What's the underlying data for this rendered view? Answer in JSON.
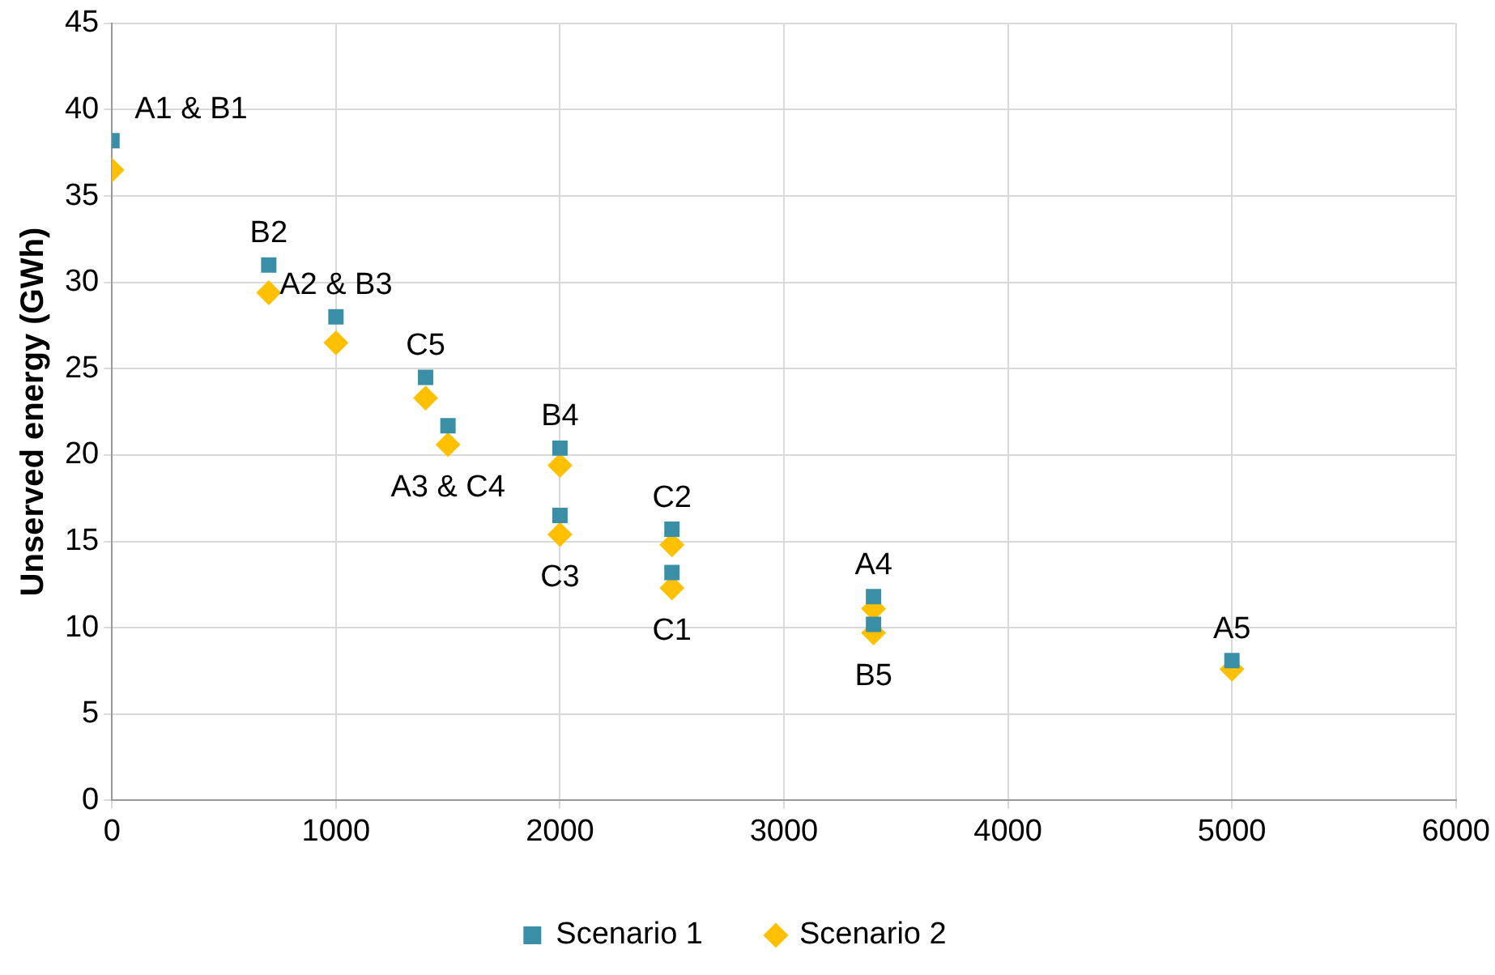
{
  "chart_data": {
    "type": "scatter",
    "ylabel": "Unserved energy (GWh)",
    "xlim": [
      0,
      6000
    ],
    "xticks": [
      0,
      1000,
      2000,
      3000,
      4000,
      5000,
      6000
    ],
    "ylim": [
      0,
      45
    ],
    "yticks": [
      0,
      5,
      10,
      15,
      20,
      25,
      30,
      35,
      40,
      45
    ],
    "grid": true,
    "legend": "bottom",
    "series": [
      {
        "name": "Scenario 1",
        "color": "#3a8fa6",
        "marker": "square",
        "x": [
          0,
          700,
          1000,
          1400,
          1500,
          2000,
          2000,
          2500,
          2500,
          3400,
          3400,
          5000
        ],
        "values": [
          38.2,
          31.0,
          28.0,
          24.5,
          21.7,
          20.4,
          16.5,
          15.7,
          13.2,
          11.8,
          10.2,
          8.1
        ]
      },
      {
        "name": "Scenario 2",
        "color": "#ffc000",
        "marker": "diamond",
        "x": [
          0,
          700,
          1000,
          1400,
          1500,
          2000,
          2000,
          2500,
          2500,
          3400,
          3400,
          5000
        ],
        "values": [
          36.5,
          29.4,
          26.5,
          23.3,
          20.6,
          19.4,
          15.4,
          14.8,
          12.3,
          11.1,
          9.7,
          7.6
        ]
      }
    ],
    "annotations": [
      {
        "text": "A1 & B1",
        "x": 0,
        "y": 38.2
      },
      {
        "text": "B2",
        "x": 700,
        "y": 31.0
      },
      {
        "text": "A2 & B3",
        "x": 1000,
        "y": 28.0
      },
      {
        "text": "C5",
        "x": 1400,
        "y": 24.5
      },
      {
        "text": "A3 & C4",
        "x": 1500,
        "y": 20.6
      },
      {
        "text": "B4",
        "x": 2000,
        "y": 20.4
      },
      {
        "text": "C3",
        "x": 2000,
        "y": 15.4
      },
      {
        "text": "C2",
        "x": 2500,
        "y": 15.7
      },
      {
        "text": "C1",
        "x": 2500,
        "y": 12.3
      },
      {
        "text": "A4",
        "x": 3400,
        "y": 11.8
      },
      {
        "text": "B5",
        "x": 3400,
        "y": 9.7
      },
      {
        "text": "A5",
        "x": 5000,
        "y": 8.1
      }
    ]
  }
}
